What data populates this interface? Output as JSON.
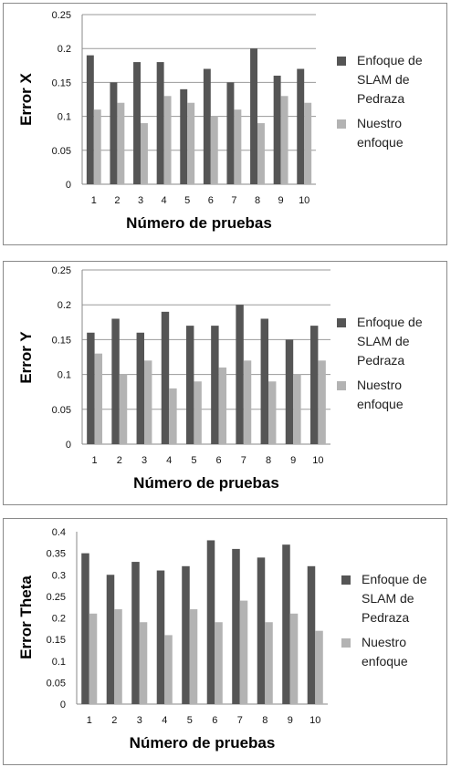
{
  "chart_data": [
    {
      "type": "bar",
      "categories": [
        "1",
        "2",
        "3",
        "4",
        "5",
        "6",
        "7",
        "8",
        "9",
        "10"
      ],
      "ylabel": "Error X",
      "xlabel": "Número de pruebas",
      "ylim": [
        0,
        0.25
      ],
      "yticks": [
        "0",
        "0.05",
        "0.1",
        "0.15",
        "0.2",
        "0.25"
      ],
      "grid": true,
      "legend_position": "right",
      "series": [
        {
          "name": "Enfoque de SLAM de Pedraza",
          "color": "#555555",
          "values": [
            0.19,
            0.15,
            0.18,
            0.18,
            0.14,
            0.17,
            0.15,
            0.2,
            0.16,
            0.17
          ]
        },
        {
          "name": "Nuestro enfoque",
          "color": "#b3b3b3",
          "values": [
            0.11,
            0.12,
            0.09,
            0.13,
            0.12,
            0.1,
            0.11,
            0.09,
            0.13,
            0.12
          ]
        }
      ],
      "legend_lines": [
        [
          "Enfoque de",
          "SLAM de",
          "Pedraza"
        ],
        [
          "Nuestro",
          "enfoque"
        ]
      ]
    },
    {
      "type": "bar",
      "categories": [
        "1",
        "2",
        "3",
        "4",
        "5",
        "6",
        "7",
        "8",
        "9",
        "10"
      ],
      "ylabel": "Error Y",
      "xlabel": "Número de pruebas",
      "ylim": [
        0,
        0.25
      ],
      "yticks": [
        "0",
        "0.05",
        "0.1",
        "0.15",
        "0.2",
        "0.25"
      ],
      "grid": true,
      "legend_position": "right",
      "series": [
        {
          "name": "Enfoque de SLAM de Pedraza",
          "color": "#555555",
          "values": [
            0.16,
            0.18,
            0.16,
            0.19,
            0.17,
            0.17,
            0.2,
            0.18,
            0.15,
            0.17
          ]
        },
        {
          "name": "Nuestro enfoque",
          "color": "#b3b3b3",
          "values": [
            0.13,
            0.1,
            0.12,
            0.08,
            0.09,
            0.11,
            0.12,
            0.09,
            0.1,
            0.12
          ]
        }
      ],
      "legend_lines": [
        [
          "Enfoque de",
          "SLAM de",
          "Pedraza"
        ],
        [
          "Nuestro",
          "enfoque"
        ]
      ]
    },
    {
      "type": "bar",
      "categories": [
        "1",
        "2",
        "3",
        "4",
        "5",
        "6",
        "7",
        "8",
        "9",
        "10"
      ],
      "ylabel": "Error Theta",
      "xlabel": "Número de pruebas",
      "ylim": [
        0,
        0.4
      ],
      "yticks": [
        "0",
        "0.05",
        "0.1",
        "0.15",
        "0.2",
        "0.25",
        "0.3",
        "0.35",
        "0.4"
      ],
      "grid": false,
      "legend_position": "right",
      "series": [
        {
          "name": "Enfoque de SLAM de Pedraza",
          "color": "#555555",
          "values": [
            0.35,
            0.3,
            0.33,
            0.31,
            0.32,
            0.38,
            0.36,
            0.34,
            0.37,
            0.32
          ]
        },
        {
          "name": "Nuestro enfoque",
          "color": "#b3b3b3",
          "values": [
            0.21,
            0.22,
            0.19,
            0.16,
            0.22,
            0.19,
            0.24,
            0.19,
            0.21,
            0.17
          ]
        }
      ],
      "legend_lines": [
        [
          "Enfoque de",
          "SLAM de",
          "Pedraza"
        ],
        [
          "Nuestro",
          "enfoque"
        ]
      ]
    }
  ]
}
